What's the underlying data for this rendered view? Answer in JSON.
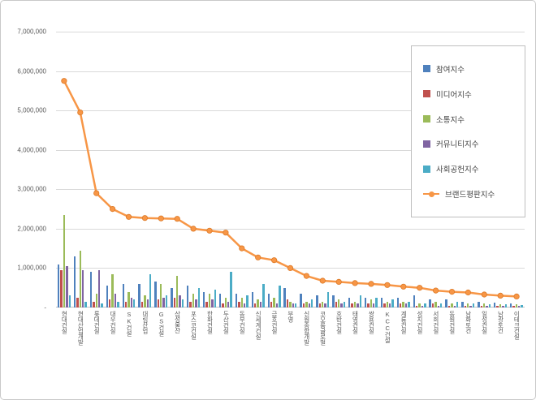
{
  "chart": {
    "title": "",
    "y_axis": {
      "tick_labels": [
        "-",
        "1,000,000",
        "2,000,000",
        "3,000,000",
        "4,000,000",
        "5,000,000",
        "6,000,000",
        "7,000,000"
      ],
      "tick_step": 1000000,
      "max": 7000000
    },
    "legend": {
      "position": "right",
      "items": [
        {
          "label": "참여지수",
          "color": "#4F81BD",
          "type": "bar"
        },
        {
          "label": "미디어지수",
          "color": "#C0504D",
          "type": "bar"
        },
        {
          "label": "소통지수",
          "color": "#9BBB59",
          "type": "bar"
        },
        {
          "label": "커뮤니티지수",
          "color": "#8064A2",
          "type": "bar"
        },
        {
          "label": "사회공헌지수",
          "color": "#4BACC6",
          "type": "bar"
        },
        {
          "label": "브랜드평판지수",
          "color": "#F79646",
          "type": "line"
        }
      ]
    }
  },
  "chart_data": {
    "type": "bar",
    "subtype": "grouped-bars-with-line",
    "grid": true,
    "ylim": [
      0,
      7000000
    ],
    "y_tick_step": 1000000,
    "legend_position": "right",
    "categories": [
      "현대건설",
      "현대산업개발",
      "롯데건설",
      "대우건설",
      "SK건설",
      "대림산업",
      "GS건설",
      "삼성물산",
      "포스코건설",
      "한화건설",
      "두산건설",
      "동부건설",
      "신세계건설",
      "금호건설",
      "부영",
      "신원종합개발",
      "코오롱글로벌",
      "호반건설",
      "태영건설",
      "쌍용건설",
      "KCC건설",
      "계룡건설",
      "성지건설",
      "서희건설",
      "동원건설",
      "남화토건",
      "일성건설",
      "남광토건",
      "이테크건설"
    ],
    "series": [
      {
        "name": "참여지수",
        "type": "bar",
        "color": "#4F81BD",
        "values": [
          1100000,
          1300000,
          900000,
          550000,
          600000,
          600000,
          650000,
          500000,
          550000,
          400000,
          350000,
          350000,
          400000,
          350000,
          500000,
          350000,
          300000,
          300000,
          250000,
          250000,
          250000,
          250000,
          300000,
          200000,
          200000,
          150000,
          150000,
          120000,
          100000
        ]
      },
      {
        "name": "미디어지수",
        "type": "bar",
        "color": "#C0504D",
        "values": [
          950000,
          250000,
          150000,
          200000,
          150000,
          150000,
          200000,
          250000,
          150000,
          150000,
          100000,
          150000,
          100000,
          150000,
          200000,
          100000,
          100000,
          150000,
          100000,
          100000,
          100000,
          100000,
          50000,
          100000,
          50000,
          50000,
          50000,
          50000,
          40000
        ]
      },
      {
        "name": "소통지수",
        "type": "bar",
        "color": "#9BBB59",
        "values": [
          2350000,
          1450000,
          350000,
          850000,
          400000,
          300000,
          600000,
          800000,
          350000,
          350000,
          250000,
          250000,
          200000,
          250000,
          150000,
          150000,
          150000,
          200000,
          150000,
          200000,
          150000,
          150000,
          100000,
          150000,
          100000,
          100000,
          100000,
          80000,
          80000
        ]
      },
      {
        "name": "커뮤니티지수",
        "type": "bar",
        "color": "#8064A2",
        "values": [
          1050000,
          950000,
          950000,
          350000,
          250000,
          200000,
          250000,
          300000,
          200000,
          200000,
          150000,
          100000,
          150000,
          100000,
          100000,
          100000,
          100000,
          100000,
          100000,
          100000,
          100000,
          100000,
          50000,
          50000,
          50000,
          50000,
          50000,
          40000,
          40000
        ]
      },
      {
        "name": "사회공헌지수",
        "type": "bar",
        "color": "#4BACC6",
        "values": [
          300000,
          150000,
          100000,
          150000,
          200000,
          850000,
          300000,
          200000,
          500000,
          450000,
          900000,
          300000,
          600000,
          550000,
          100000,
          200000,
          400000,
          150000,
          300000,
          250000,
          200000,
          150000,
          100000,
          100000,
          150000,
          100000,
          80000,
          80000,
          60000
        ]
      },
      {
        "name": "브랜드평판지수",
        "type": "line",
        "color": "#F79646",
        "values": [
          5750000,
          4950000,
          2900000,
          2500000,
          2300000,
          2270000,
          2260000,
          2250000,
          2000000,
          1950000,
          1900000,
          1500000,
          1270000,
          1200000,
          1000000,
          800000,
          680000,
          650000,
          620000,
          600000,
          570000,
          530000,
          500000,
          430000,
          400000,
          380000,
          330000,
          300000,
          280000
        ]
      }
    ]
  }
}
